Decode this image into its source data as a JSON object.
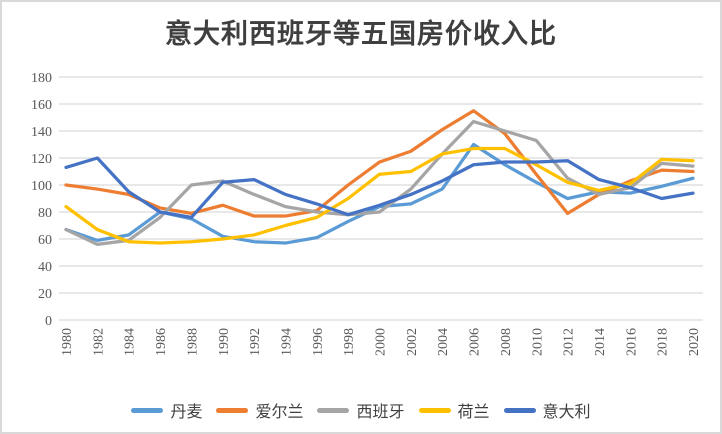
{
  "chart_data": {
    "type": "line",
    "title": "意大利西班牙等五国房价收入比",
    "xlabel": "",
    "ylabel": "",
    "x_labels": [
      "1980",
      "1982",
      "1984",
      "1986",
      "1988",
      "1990",
      "1992",
      "1994",
      "1996",
      "1998",
      "2000",
      "2002",
      "2004",
      "2006",
      "2008",
      "2010",
      "2012",
      "2014",
      "2016",
      "2018",
      "2020"
    ],
    "ylim": [
      0,
      180
    ],
    "y_tick_step": 20,
    "grid": "horizontal",
    "legend_position": "bottom",
    "colors": {
      "grid": "#d9d9d9",
      "axis_text": "#595959",
      "title_text": "#3f3f3f",
      "legend_text": "#404040"
    },
    "series": [
      {
        "name": "丹麦",
        "color": "#5B9BD5",
        "values": [
          67,
          59,
          63,
          80,
          75,
          62,
          58,
          57,
          61,
          73,
          84,
          86,
          97,
          130,
          115,
          102,
          90,
          95,
          94,
          99,
          105
        ]
      },
      {
        "name": "爱尔兰",
        "color": "#ED7D31",
        "values": [
          100,
          97,
          93,
          83,
          79,
          85,
          77,
          77,
          81,
          100,
          117,
          125,
          141,
          155,
          138,
          108,
          79,
          93,
          103,
          111,
          110
        ]
      },
      {
        "name": "西班牙",
        "color": "#A5A5A5",
        "values": [
          67,
          56,
          59,
          76,
          100,
          103,
          93,
          84,
          80,
          78,
          80,
          97,
          123,
          147,
          140,
          133,
          105,
          93,
          98,
          116,
          114
        ]
      },
      {
        "name": "荷兰",
        "color": "#FFC000",
        "values": [
          84,
          67,
          58,
          57,
          58,
          60,
          63,
          70,
          76,
          90,
          108,
          110,
          123,
          127,
          127,
          115,
          102,
          96,
          101,
          119,
          118
        ]
      },
      {
        "name": "意大利",
        "color": "#4472C4",
        "values": [
          113,
          120,
          95,
          80,
          76,
          102,
          104,
          93,
          86,
          78,
          85,
          93,
          103,
          115,
          117,
          117,
          118,
          104,
          98,
          90,
          94
        ]
      }
    ]
  }
}
